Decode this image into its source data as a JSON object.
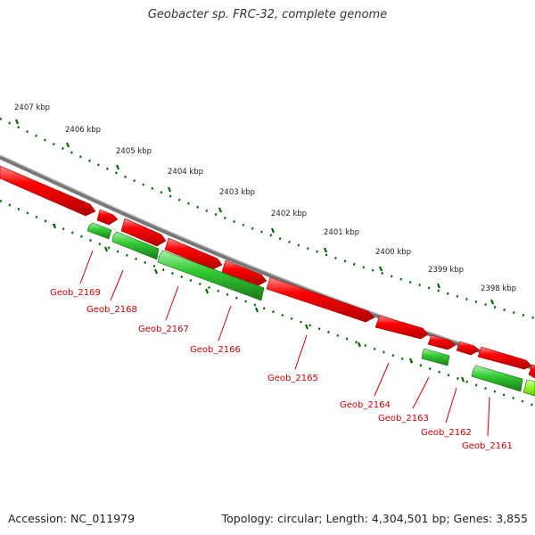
{
  "title": "Geobacter sp. FRC-32, complete genome",
  "accession_text": "Accession: NC_011979",
  "summary_text": "Topology: circular; Length: 4,304,501 bp; Genes: 3,855",
  "colors": {
    "forward_gene": "#ff0000",
    "reverse_gene": "#33cc33",
    "reverse_gene_light": "#99ff33",
    "backbone": "#888888",
    "tick": "#006600",
    "label": "#cc0000"
  },
  "kbp_labels": [
    "2407 kbp",
    "2406 kbp",
    "2405 kbp",
    "2404 kbp",
    "2403 kbp",
    "2402 kbp",
    "2401 kbp",
    "2400 kbp",
    "2399 kbp",
    "2398 kbp"
  ],
  "genes": [
    {
      "label": "Geob_2169"
    },
    {
      "label": "Geob_2168"
    },
    {
      "label": "Geob_2167"
    },
    {
      "label": "Geob_2166"
    },
    {
      "label": "Geob_2165"
    },
    {
      "label": "Geob_2164"
    },
    {
      "label": "Geob_2163"
    },
    {
      "label": "Geob_2162"
    },
    {
      "label": "Geob_2161"
    }
  ]
}
